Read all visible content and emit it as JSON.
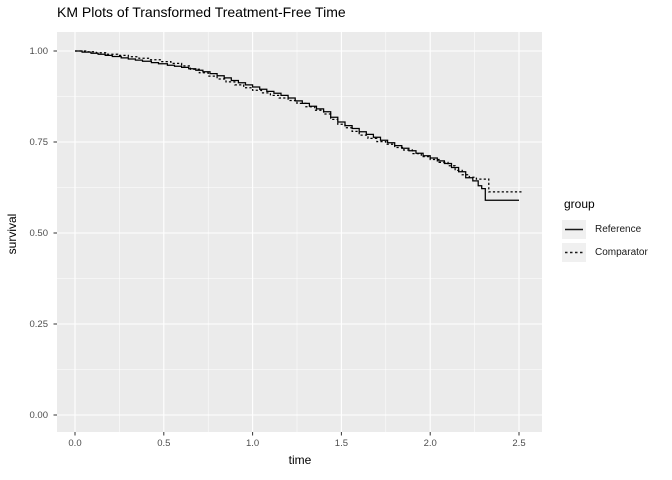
{
  "title": "KM Plots of Transformed Treatment-Free Time",
  "axes": {
    "x": {
      "label": "time",
      "ticks": [
        0.0,
        0.5,
        1.0,
        1.5,
        2.0,
        2.5
      ],
      "tick_labels": [
        "0.0",
        "0.5",
        "1.0",
        "1.5",
        "2.0",
        "2.5"
      ]
    },
    "y": {
      "label": "survival",
      "ticks": [
        0.0,
        0.25,
        0.5,
        0.75,
        1.0
      ],
      "tick_labels": [
        "0.00",
        "0.25",
        "0.50",
        "0.75",
        "1.00"
      ]
    }
  },
  "legend": {
    "title": "group",
    "entries": [
      {
        "label": "Reference",
        "linetype": "solid"
      },
      {
        "label": "Comparator",
        "linetype": "dashed"
      }
    ]
  },
  "colors": {
    "panel_bg": "#EBEBEB",
    "grid": "#FFFFFF",
    "line": "#000000",
    "tick_mark": "#333333",
    "tick_text": "#4D4D4D",
    "legend_key_bg": "#F0F0F0"
  },
  "chart_data": {
    "type": "line",
    "subtype": "kaplan-meier-step",
    "title": "KM Plots of Transformed Treatment-Free Time",
    "xlabel": "time",
    "ylabel": "survival",
    "xlim": [
      0,
      2.52
    ],
    "ylim": [
      0,
      1
    ],
    "x_breaks": [
      0.0,
      0.5,
      1.0,
      1.5,
      2.0,
      2.5
    ],
    "y_breaks": [
      0.0,
      0.25,
      0.5,
      0.75,
      1.0
    ],
    "grid": true,
    "legend_position": "right",
    "series": [
      {
        "name": "Reference",
        "linetype": "solid",
        "points": [
          [
            0,
            1
          ],
          [
            0.04,
            0.997
          ],
          [
            0.09,
            0.994
          ],
          [
            0.13,
            0.991
          ],
          [
            0.17,
            0.988
          ],
          [
            0.21,
            0.985
          ],
          [
            0.26,
            0.981
          ],
          [
            0.3,
            0.978
          ],
          [
            0.34,
            0.975
          ],
          [
            0.38,
            0.972
          ],
          [
            0.43,
            0.968
          ],
          [
            0.47,
            0.965
          ],
          [
            0.52,
            0.961
          ],
          [
            0.56,
            0.958
          ],
          [
            0.6,
            0.955
          ],
          [
            0.64,
            0.951
          ],
          [
            0.68,
            0.947
          ],
          [
            0.72,
            0.943
          ],
          [
            0.76,
            0.938
          ],
          [
            0.8,
            0.932
          ],
          [
            0.84,
            0.926
          ],
          [
            0.88,
            0.919
          ],
          [
            0.92,
            0.913
          ],
          [
            0.96,
            0.907
          ],
          [
            1,
            0.901
          ],
          [
            1.04,
            0.895
          ],
          [
            1.08,
            0.889
          ],
          [
            1.12,
            0.884
          ],
          [
            1.16,
            0.878
          ],
          [
            1.2,
            0.871
          ],
          [
            1.24,
            0.863
          ],
          [
            1.28,
            0.856
          ],
          [
            1.32,
            0.848
          ],
          [
            1.36,
            0.841
          ],
          [
            1.4,
            0.833
          ],
          [
            1.44,
            0.818
          ],
          [
            1.48,
            0.805
          ],
          [
            1.52,
            0.795
          ],
          [
            1.56,
            0.787
          ],
          [
            1.6,
            0.778
          ],
          [
            1.64,
            0.771
          ],
          [
            1.68,
            0.763
          ],
          [
            1.72,
            0.755
          ],
          [
            1.76,
            0.748
          ],
          [
            1.8,
            0.74
          ],
          [
            1.84,
            0.733
          ],
          [
            1.88,
            0.726
          ],
          [
            1.92,
            0.719
          ],
          [
            1.96,
            0.712
          ],
          [
            2,
            0.706
          ],
          [
            2.04,
            0.698
          ],
          [
            2.08,
            0.691
          ],
          [
            2.12,
            0.68
          ],
          [
            2.16,
            0.668
          ],
          [
            2.2,
            0.652
          ],
          [
            2.24,
            0.643
          ],
          [
            2.27,
            0.63
          ],
          [
            2.29,
            0.622
          ],
          [
            2.31,
            0.59
          ],
          [
            2.5,
            0.59
          ]
        ]
      },
      {
        "name": "Comparator",
        "linetype": "dashed",
        "points": [
          [
            0,
            1
          ],
          [
            0.06,
            0.998
          ],
          [
            0.12,
            0.995
          ],
          [
            0.18,
            0.991
          ],
          [
            0.24,
            0.988
          ],
          [
            0.3,
            0.984
          ],
          [
            0.36,
            0.98
          ],
          [
            0.42,
            0.976
          ],
          [
            0.48,
            0.971
          ],
          [
            0.54,
            0.966
          ],
          [
            0.6,
            0.959
          ],
          [
            0.65,
            0.95
          ],
          [
            0.7,
            0.94
          ],
          [
            0.75,
            0.931
          ],
          [
            0.8,
            0.923
          ],
          [
            0.85,
            0.915
          ],
          [
            0.9,
            0.907
          ],
          [
            0.95,
            0.899
          ],
          [
            1,
            0.892
          ],
          [
            1.05,
            0.885
          ],
          [
            1.1,
            0.878
          ],
          [
            1.15,
            0.871
          ],
          [
            1.2,
            0.864
          ],
          [
            1.25,
            0.856
          ],
          [
            1.3,
            0.847
          ],
          [
            1.35,
            0.837
          ],
          [
            1.4,
            0.827
          ],
          [
            1.44,
            0.812
          ],
          [
            1.48,
            0.799
          ],
          [
            1.52,
            0.789
          ],
          [
            1.56,
            0.779
          ],
          [
            1.6,
            0.769
          ],
          [
            1.65,
            0.76
          ],
          [
            1.7,
            0.751
          ],
          [
            1.75,
            0.744
          ],
          [
            1.8,
            0.735
          ],
          [
            1.85,
            0.728
          ],
          [
            1.9,
            0.718
          ],
          [
            1.95,
            0.71
          ],
          [
            2,
            0.702
          ],
          [
            2.05,
            0.694
          ],
          [
            2.1,
            0.685
          ],
          [
            2.14,
            0.672
          ],
          [
            2.18,
            0.66
          ],
          [
            2.22,
            0.653
          ],
          [
            2.26,
            0.648
          ],
          [
            2.33,
            0.613
          ],
          [
            2.52,
            0.613
          ]
        ]
      }
    ]
  }
}
